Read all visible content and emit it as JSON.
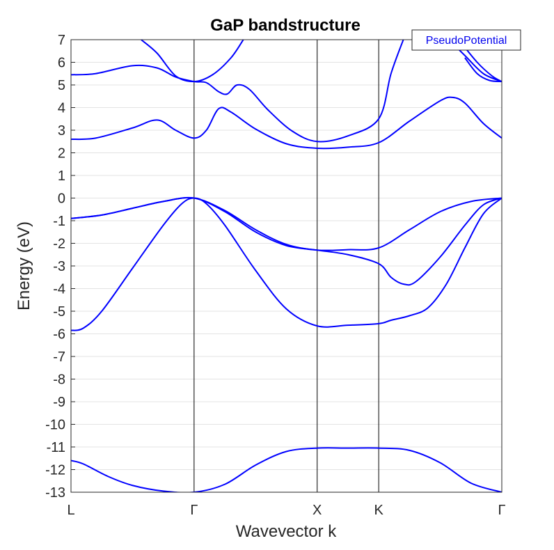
{
  "chart_data": {
    "type": "line",
    "title": "GaP bandstructure",
    "xlabel": "Wavevector k",
    "ylabel": "Energy (eV)",
    "ylim": [
      -13,
      7
    ],
    "yticks": [
      7,
      6,
      5,
      4,
      3,
      2,
      1,
      0,
      -1,
      -2,
      -3,
      -4,
      -5,
      -6,
      -7,
      -8,
      -9,
      -10,
      -11,
      -12,
      -13
    ],
    "xlim": [
      0,
      3.5
    ],
    "xticks": [
      {
        "label": "L",
        "x": 0
      },
      {
        "label": "Γ",
        "x": 1
      },
      {
        "label": "X",
        "x": 2
      },
      {
        "label": "K",
        "x": 2.5
      },
      {
        "label": "Γ",
        "x": 3.5
      }
    ],
    "grid": "horizontal",
    "legend": {
      "label": "PseudoPotential",
      "position": "top-right"
    },
    "line_color": "#0000ff",
    "series": [
      {
        "values": [
          [
            0,
            -11.6
          ],
          [
            0.1,
            -11.75
          ],
          [
            0.3,
            -12.3
          ],
          [
            0.5,
            -12.7
          ],
          [
            0.75,
            -12.95
          ],
          [
            1,
            -13.0
          ],
          [
            1.25,
            -12.65
          ],
          [
            1.5,
            -11.8
          ],
          [
            1.75,
            -11.2
          ],
          [
            2,
            -11.05
          ],
          [
            2.25,
            -11.05
          ],
          [
            2.5,
            -11.05
          ],
          [
            2.75,
            -11.15
          ],
          [
            3,
            -11.7
          ],
          [
            3.25,
            -12.6
          ],
          [
            3.5,
            -13.0
          ]
        ]
      },
      {
        "values": [
          [
            0,
            -5.85
          ],
          [
            0.1,
            -5.75
          ],
          [
            0.25,
            -5.0
          ],
          [
            0.5,
            -3.1
          ],
          [
            0.75,
            -1.2
          ],
          [
            0.9,
            -0.25
          ],
          [
            1,
            0.0
          ],
          [
            1.1,
            -0.25
          ],
          [
            1.25,
            -1.2
          ],
          [
            1.5,
            -3.2
          ],
          [
            1.75,
            -4.9
          ],
          [
            2,
            -5.65
          ],
          [
            2.25,
            -5.62
          ],
          [
            2.5,
            -5.55
          ],
          [
            2.6,
            -5.4
          ],
          [
            2.75,
            -5.2
          ],
          [
            2.9,
            -4.85
          ],
          [
            3.05,
            -3.8
          ],
          [
            3.2,
            -2.2
          ],
          [
            3.35,
            -0.7
          ],
          [
            3.5,
            0.0
          ]
        ]
      },
      {
        "values": [
          [
            0,
            -0.9
          ],
          [
            0.25,
            -0.75
          ],
          [
            0.5,
            -0.45
          ],
          [
            0.75,
            -0.15
          ],
          [
            1,
            0.0
          ],
          [
            1.25,
            -0.6
          ],
          [
            1.5,
            -1.5
          ],
          [
            1.75,
            -2.1
          ],
          [
            2,
            -2.3
          ],
          [
            2.25,
            -2.5
          ],
          [
            2.5,
            -2.9
          ],
          [
            2.6,
            -3.5
          ],
          [
            2.7,
            -3.8
          ],
          [
            2.8,
            -3.7
          ],
          [
            3.0,
            -2.6
          ],
          [
            3.2,
            -1.2
          ],
          [
            3.35,
            -0.3
          ],
          [
            3.5,
            0.0
          ]
        ]
      },
      {
        "values": [
          [
            0,
            -0.9
          ],
          [
            0.25,
            -0.75
          ],
          [
            0.5,
            -0.45
          ],
          [
            0.75,
            -0.15
          ],
          [
            1,
            0.0
          ],
          [
            1.25,
            -0.55
          ],
          [
            1.5,
            -1.4
          ],
          [
            1.75,
            -2.05
          ],
          [
            2,
            -2.3
          ],
          [
            2.25,
            -2.28
          ],
          [
            2.5,
            -2.2
          ],
          [
            2.75,
            -1.4
          ],
          [
            3.0,
            -0.6
          ],
          [
            3.25,
            -0.15
          ],
          [
            3.5,
            0.0
          ]
        ]
      },
      {
        "values": [
          [
            0,
            2.6
          ],
          [
            0.2,
            2.65
          ],
          [
            0.5,
            3.1
          ],
          [
            0.7,
            3.45
          ],
          [
            0.85,
            3.0
          ],
          [
            1,
            2.65
          ],
          [
            1.1,
            3.0
          ],
          [
            1.2,
            3.95
          ],
          [
            1.3,
            3.8
          ],
          [
            1.5,
            3.05
          ],
          [
            1.75,
            2.4
          ],
          [
            2,
            2.2
          ],
          [
            2.25,
            2.25
          ],
          [
            2.5,
            2.45
          ],
          [
            2.75,
            3.4
          ],
          [
            3.0,
            4.3
          ],
          [
            3.1,
            4.45
          ],
          [
            3.2,
            4.2
          ],
          [
            3.35,
            3.3
          ],
          [
            3.5,
            2.65
          ]
        ]
      },
      {
        "values": [
          [
            0,
            5.45
          ],
          [
            0.2,
            5.5
          ],
          [
            0.5,
            5.85
          ],
          [
            0.7,
            5.75
          ],
          [
            0.85,
            5.35
          ],
          [
            1,
            5.15
          ],
          [
            1.1,
            5.1
          ],
          [
            1.2,
            4.7
          ],
          [
            1.27,
            4.6
          ],
          [
            1.35,
            5.0
          ],
          [
            1.45,
            4.8
          ],
          [
            1.6,
            3.9
          ],
          [
            1.8,
            2.95
          ],
          [
            2,
            2.5
          ],
          [
            2.25,
            2.75
          ],
          [
            2.5,
            3.5
          ],
          [
            2.6,
            5.5
          ],
          [
            2.7,
            7.0
          ]
        ]
      },
      {
        "values": [
          [
            0.57,
            7.0
          ],
          [
            0.7,
            6.4
          ],
          [
            0.85,
            5.4
          ],
          [
            1,
            5.15
          ],
          [
            1.15,
            5.45
          ],
          [
            1.3,
            6.2
          ],
          [
            1.4,
            7.0
          ]
        ]
      },
      {
        "values": [
          [
            3.07,
            7.0
          ],
          [
            3.2,
            6.3
          ],
          [
            3.35,
            5.5
          ],
          [
            3.5,
            5.15
          ]
        ]
      },
      {
        "values": [
          [
            3.15,
            7.0
          ],
          [
            3.3,
            6.0
          ],
          [
            3.42,
            5.4
          ],
          [
            3.5,
            5.15
          ]
        ]
      },
      {
        "values": [
          [
            3.2,
            6.2
          ],
          [
            3.3,
            5.5
          ],
          [
            3.4,
            5.2
          ],
          [
            3.5,
            5.15
          ]
        ]
      }
    ]
  }
}
